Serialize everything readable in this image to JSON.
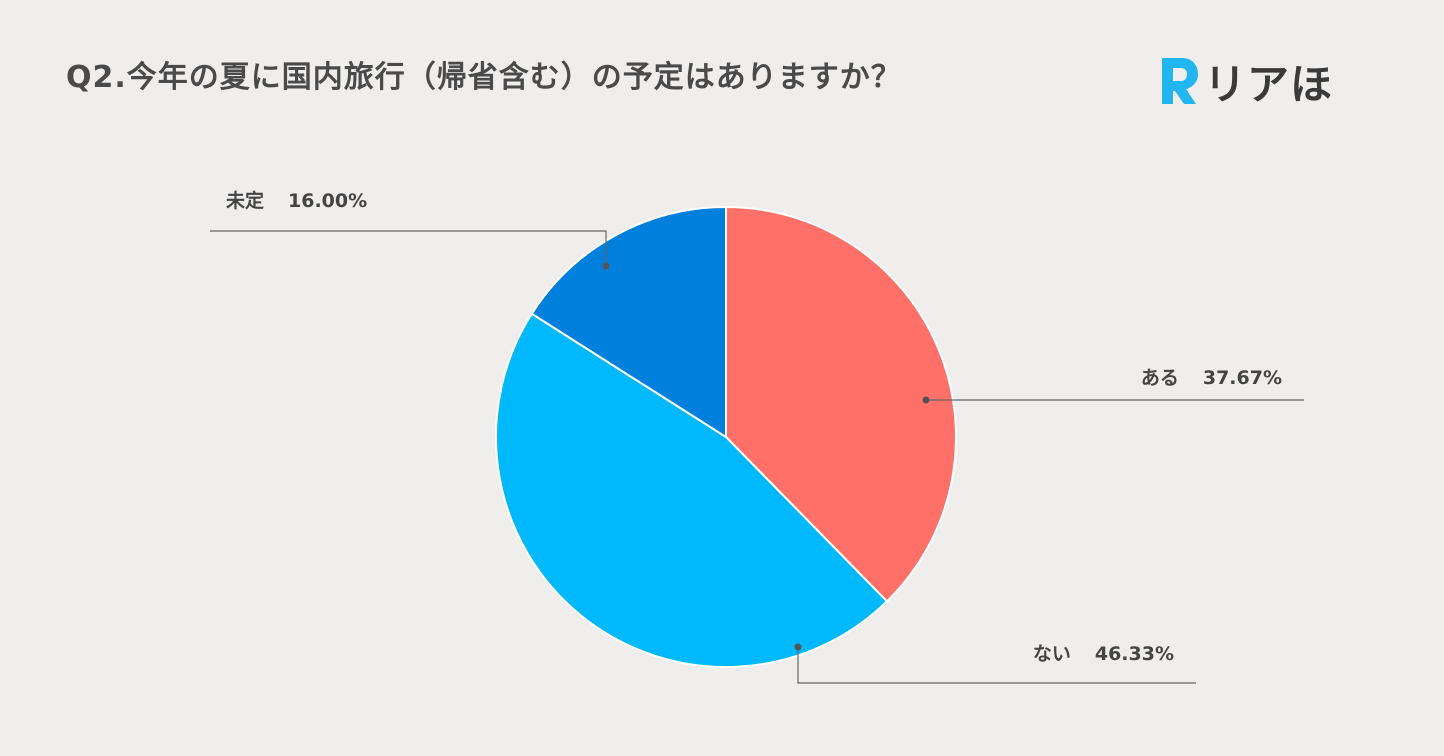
{
  "title": "Q2.今年の夏に国内旅行（帰省含む）の予定はありますか？",
  "logo": {
    "text": "リアほ",
    "mark_letter": "R",
    "color": "#21b6f0"
  },
  "chart_data": {
    "type": "pie",
    "title": "Q2.今年の夏に国内旅行（帰省含む）の予定はありますか？",
    "slices": [
      {
        "label": "ある",
        "value": 37.67,
        "value_label": "37.67%",
        "color": "#ff7068"
      },
      {
        "label": "ない",
        "value": 46.33,
        "value_label": "46.33%",
        "color": "#00b8fc"
      },
      {
        "label": "未定",
        "value": 16.0,
        "value_label": "16.00%",
        "color": "#0080dd"
      }
    ],
    "start_angle": "12 o'clock",
    "direction": "clockwise",
    "legend": "none",
    "labels": "outside with leader lines"
  }
}
